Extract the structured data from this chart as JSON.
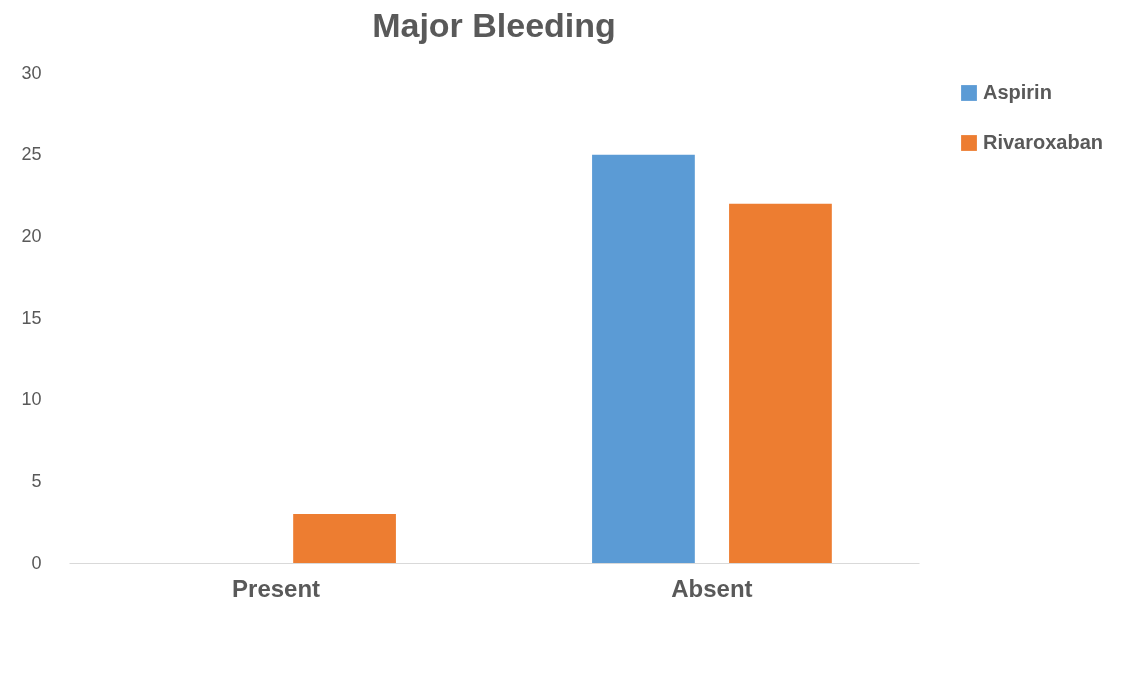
{
  "chart_data": {
    "type": "bar",
    "title": "Major Bleeding",
    "categories": [
      "Present",
      "Absent"
    ],
    "series": [
      {
        "name": "Aspirin",
        "color": "#5b9bd5",
        "values": [
          0,
          25
        ]
      },
      {
        "name": "Rivaroxaban",
        "color": "#ed7d31",
        "values": [
          3,
          22
        ]
      }
    ],
    "ylim": [
      0,
      30
    ],
    "yticks": [
      0,
      5,
      10,
      15,
      20,
      25,
      30
    ],
    "grid": false,
    "legend": "right"
  }
}
